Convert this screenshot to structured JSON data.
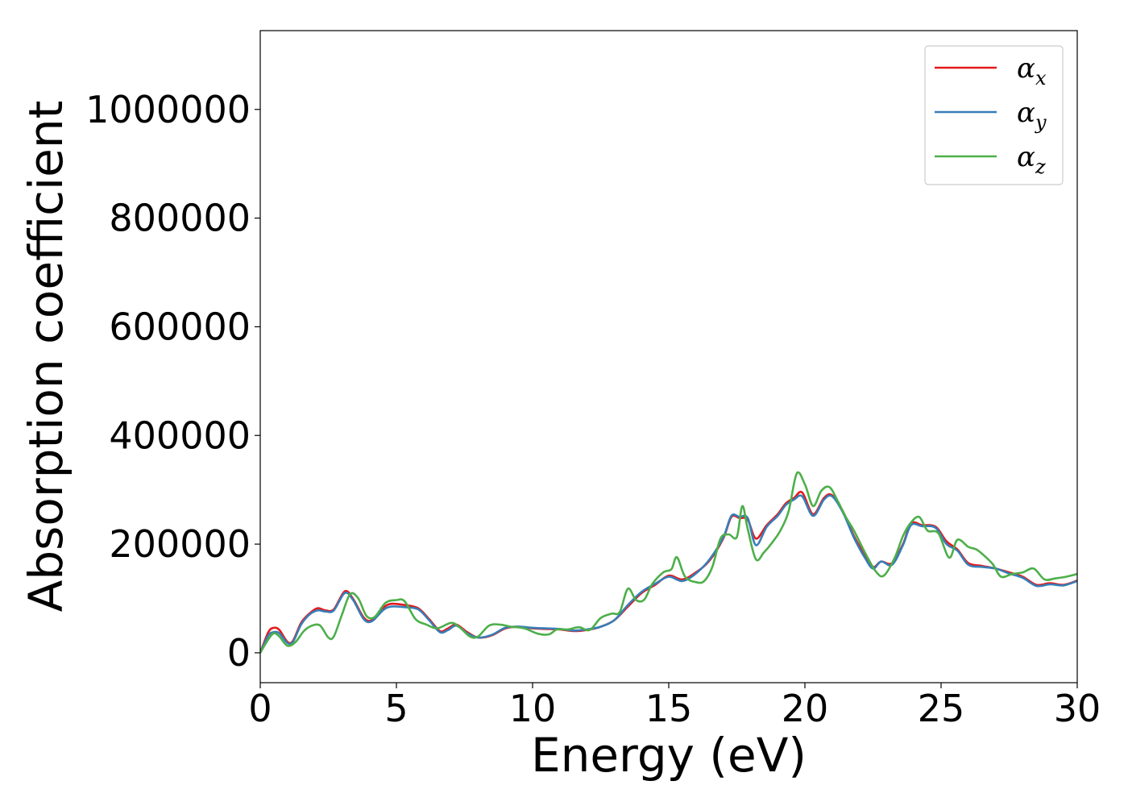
{
  "chart_data": {
    "type": "line",
    "title": "",
    "xlabel": "Energy (eV)",
    "ylabel": "Absorption coefficient",
    "xlim": [
      0,
      30
    ],
    "ylim": [
      -55000,
      1145000
    ],
    "xticks": [
      0,
      5,
      10,
      15,
      20,
      25,
      30
    ],
    "xtick_labels": [
      "0",
      "5",
      "10",
      "15",
      "20",
      "25",
      "30"
    ],
    "yticks": [
      0,
      200000,
      400000,
      600000,
      800000,
      1000000
    ],
    "ytick_labels": [
      "0",
      "200000",
      "400000",
      "600000",
      "800000",
      "1000000"
    ],
    "grid": false,
    "legend_position": "top-right",
    "series": [
      {
        "name": "αx",
        "label_base": "α",
        "label_sub": "x",
        "color": "#e41a1c",
        "points": [
          [
            0,
            0
          ],
          [
            0.3,
            38000
          ],
          [
            0.5,
            46000
          ],
          [
            0.7,
            42000
          ],
          [
            1.0,
            20000
          ],
          [
            1.2,
            22000
          ],
          [
            1.5,
            55000
          ],
          [
            1.8,
            72000
          ],
          [
            2.1,
            82000
          ],
          [
            2.4,
            78000
          ],
          [
            2.7,
            80000
          ],
          [
            3.1,
            113000
          ],
          [
            3.4,
            100000
          ],
          [
            3.8,
            65000
          ],
          [
            4.1,
            60000
          ],
          [
            4.5,
            82000
          ],
          [
            4.8,
            90000
          ],
          [
            5.3,
            88000
          ],
          [
            5.8,
            82000
          ],
          [
            6.2,
            62000
          ],
          [
            6.6,
            40000
          ],
          [
            6.9,
            45000
          ],
          [
            7.2,
            52000
          ],
          [
            7.6,
            38000
          ],
          [
            8.0,
            28000
          ],
          [
            8.5,
            32000
          ],
          [
            9.0,
            45000
          ],
          [
            9.5,
            48000
          ],
          [
            10.0,
            45000
          ],
          [
            10.5,
            44000
          ],
          [
            11.0,
            43000
          ],
          [
            11.5,
            40000
          ],
          [
            12.0,
            42000
          ],
          [
            12.5,
            48000
          ],
          [
            13.0,
            60000
          ],
          [
            13.5,
            85000
          ],
          [
            14.0,
            110000
          ],
          [
            14.5,
            125000
          ],
          [
            15.0,
            142000
          ],
          [
            15.5,
            135000
          ],
          [
            16.0,
            148000
          ],
          [
            16.5,
            170000
          ],
          [
            17.0,
            210000
          ],
          [
            17.3,
            250000
          ],
          [
            17.6,
            248000
          ],
          [
            17.9,
            245000
          ],
          [
            18.2,
            210000
          ],
          [
            18.6,
            235000
          ],
          [
            19.0,
            255000
          ],
          [
            19.3,
            275000
          ],
          [
            19.6,
            285000
          ],
          [
            19.9,
            295000
          ],
          [
            20.3,
            255000
          ],
          [
            20.7,
            285000
          ],
          [
            21.0,
            290000
          ],
          [
            21.4,
            260000
          ],
          [
            21.8,
            215000
          ],
          [
            22.2,
            180000
          ],
          [
            22.5,
            158000
          ],
          [
            22.8,
            168000
          ],
          [
            23.2,
            165000
          ],
          [
            23.6,
            200000
          ],
          [
            23.9,
            238000
          ],
          [
            24.3,
            235000
          ],
          [
            24.8,
            232000
          ],
          [
            25.2,
            205000
          ],
          [
            25.6,
            190000
          ],
          [
            26.0,
            165000
          ],
          [
            26.5,
            160000
          ],
          [
            27.0,
            155000
          ],
          [
            27.5,
            148000
          ],
          [
            28.0,
            140000
          ],
          [
            28.5,
            125000
          ],
          [
            29.0,
            128000
          ],
          [
            29.5,
            125000
          ],
          [
            30.0,
            133000
          ]
        ]
      },
      {
        "name": "αy",
        "label_base": "α",
        "label_sub": "y",
        "color": "#377eb8",
        "points": [
          [
            0,
            0
          ],
          [
            0.3,
            32000
          ],
          [
            0.5,
            38000
          ],
          [
            0.7,
            36000
          ],
          [
            1.0,
            18000
          ],
          [
            1.2,
            20000
          ],
          [
            1.5,
            52000
          ],
          [
            1.8,
            70000
          ],
          [
            2.1,
            78000
          ],
          [
            2.4,
            76000
          ],
          [
            2.7,
            78000
          ],
          [
            3.1,
            110000
          ],
          [
            3.4,
            98000
          ],
          [
            3.8,
            62000
          ],
          [
            4.1,
            58000
          ],
          [
            4.5,
            78000
          ],
          [
            4.8,
            85000
          ],
          [
            5.3,
            84000
          ],
          [
            5.8,
            80000
          ],
          [
            6.2,
            60000
          ],
          [
            6.6,
            38000
          ],
          [
            6.9,
            42000
          ],
          [
            7.2,
            50000
          ],
          [
            7.6,
            36000
          ],
          [
            8.0,
            28000
          ],
          [
            8.5,
            33000
          ],
          [
            9.0,
            46000
          ],
          [
            9.5,
            48000
          ],
          [
            10.0,
            46000
          ],
          [
            10.5,
            45000
          ],
          [
            11.0,
            44000
          ],
          [
            11.5,
            41000
          ],
          [
            12.0,
            43000
          ],
          [
            12.5,
            48000
          ],
          [
            13.0,
            60000
          ],
          [
            13.5,
            88000
          ],
          [
            14.0,
            112000
          ],
          [
            14.5,
            127000
          ],
          [
            15.0,
            140000
          ],
          [
            15.5,
            132000
          ],
          [
            16.0,
            146000
          ],
          [
            16.5,
            172000
          ],
          [
            17.0,
            212000
          ],
          [
            17.3,
            252000
          ],
          [
            17.6,
            250000
          ],
          [
            17.9,
            248000
          ],
          [
            18.2,
            198000
          ],
          [
            18.6,
            232000
          ],
          [
            19.0,
            252000
          ],
          [
            19.3,
            272000
          ],
          [
            19.6,
            282000
          ],
          [
            19.9,
            288000
          ],
          [
            20.3,
            252000
          ],
          [
            20.7,
            282000
          ],
          [
            21.0,
            288000
          ],
          [
            21.4,
            258000
          ],
          [
            21.8,
            212000
          ],
          [
            22.2,
            175000
          ],
          [
            22.5,
            155000
          ],
          [
            22.8,
            168000
          ],
          [
            23.2,
            162000
          ],
          [
            23.6,
            198000
          ],
          [
            23.9,
            235000
          ],
          [
            24.3,
            233000
          ],
          [
            24.8,
            230000
          ],
          [
            25.2,
            200000
          ],
          [
            25.6,
            188000
          ],
          [
            26.0,
            162000
          ],
          [
            26.5,
            158000
          ],
          [
            27.0,
            155000
          ],
          [
            27.5,
            146000
          ],
          [
            28.0,
            138000
          ],
          [
            28.5,
            123000
          ],
          [
            29.0,
            126000
          ],
          [
            29.5,
            124000
          ],
          [
            30.0,
            132000
          ]
        ]
      },
      {
        "name": "αz",
        "label_base": "α",
        "label_sub": "z",
        "color": "#4daf4a",
        "points": [
          [
            0,
            0
          ],
          [
            0.3,
            25000
          ],
          [
            0.5,
            36000
          ],
          [
            0.7,
            30000
          ],
          [
            1.0,
            13000
          ],
          [
            1.3,
            20000
          ],
          [
            1.6,
            40000
          ],
          [
            1.9,
            50000
          ],
          [
            2.2,
            50000
          ],
          [
            2.5,
            28000
          ],
          [
            2.7,
            30000
          ],
          [
            3.0,
            70000
          ],
          [
            3.3,
            108000
          ],
          [
            3.6,
            100000
          ],
          [
            3.9,
            68000
          ],
          [
            4.2,
            66000
          ],
          [
            4.6,
            92000
          ],
          [
            5.0,
            97000
          ],
          [
            5.3,
            95000
          ],
          [
            5.7,
            62000
          ],
          [
            6.1,
            52000
          ],
          [
            6.5,
            45000
          ],
          [
            7.0,
            55000
          ],
          [
            7.3,
            48000
          ],
          [
            7.7,
            30000
          ],
          [
            8.0,
            30000
          ],
          [
            8.4,
            50000
          ],
          [
            8.8,
            52000
          ],
          [
            9.2,
            48000
          ],
          [
            9.7,
            45000
          ],
          [
            10.2,
            35000
          ],
          [
            10.6,
            34000
          ],
          [
            10.9,
            43000
          ],
          [
            11.3,
            43000
          ],
          [
            11.7,
            47000
          ],
          [
            12.1,
            42000
          ],
          [
            12.5,
            64000
          ],
          [
            12.9,
            72000
          ],
          [
            13.2,
            75000
          ],
          [
            13.5,
            118000
          ],
          [
            13.8,
            97000
          ],
          [
            14.1,
            98000
          ],
          [
            14.4,
            127000
          ],
          [
            14.8,
            148000
          ],
          [
            15.1,
            154000
          ],
          [
            15.3,
            176000
          ],
          [
            15.6,
            140000
          ],
          [
            16.0,
            130000
          ],
          [
            16.3,
            132000
          ],
          [
            16.6,
            158000
          ],
          [
            16.9,
            210000
          ],
          [
            17.2,
            218000
          ],
          [
            17.5,
            213000
          ],
          [
            17.7,
            270000
          ],
          [
            17.9,
            228000
          ],
          [
            18.2,
            172000
          ],
          [
            18.5,
            185000
          ],
          [
            18.8,
            203000
          ],
          [
            19.1,
            225000
          ],
          [
            19.4,
            260000
          ],
          [
            19.7,
            330000
          ],
          [
            20.0,
            310000
          ],
          [
            20.3,
            270000
          ],
          [
            20.6,
            298000
          ],
          [
            20.9,
            305000
          ],
          [
            21.2,
            280000
          ],
          [
            21.5,
            250000
          ],
          [
            21.8,
            225000
          ],
          [
            22.2,
            185000
          ],
          [
            22.6,
            150000
          ],
          [
            22.9,
            142000
          ],
          [
            23.3,
            175000
          ],
          [
            23.6,
            215000
          ],
          [
            23.9,
            240000
          ],
          [
            24.2,
            250000
          ],
          [
            24.5,
            225000
          ],
          [
            24.9,
            220000
          ],
          [
            25.3,
            175000
          ],
          [
            25.6,
            208000
          ],
          [
            26.0,
            195000
          ],
          [
            26.3,
            190000
          ],
          [
            26.6,
            178000
          ],
          [
            26.9,
            163000
          ],
          [
            27.2,
            140000
          ],
          [
            27.6,
            145000
          ],
          [
            28.0,
            148000
          ],
          [
            28.4,
            155000
          ],
          [
            28.8,
            135000
          ],
          [
            29.2,
            137000
          ],
          [
            29.6,
            140000
          ],
          [
            30.0,
            145000
          ]
        ]
      }
    ]
  }
}
